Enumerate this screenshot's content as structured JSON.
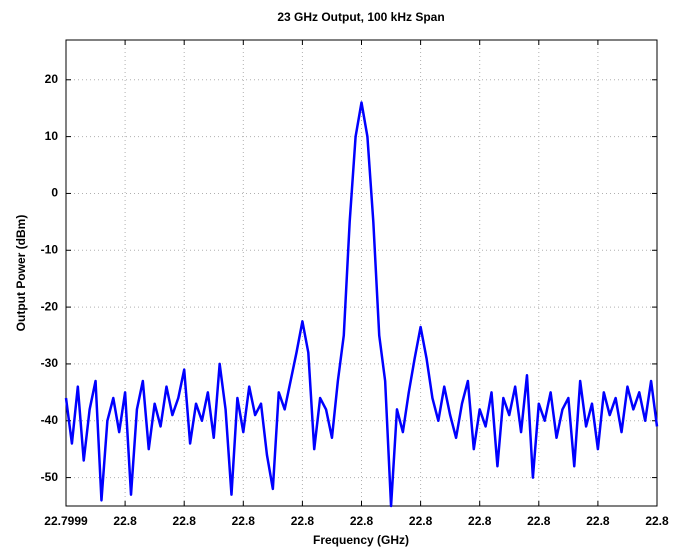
{
  "chart_data": {
    "type": "line",
    "title": "23 GHz Output, 100 kHz Span",
    "xlabel": "Frequency (GHz)",
    "ylabel": "Output Power (dBm)",
    "color": "#0000ff",
    "grid": true,
    "xlim": [
      22.79995,
      22.80005
    ],
    "ylim": [
      -55,
      27
    ],
    "xticks": [
      {
        "value": 22.79995,
        "label": "22.7999"
      },
      {
        "value": 22.79996,
        "label": "22.8"
      },
      {
        "value": 22.79997,
        "label": "22.8"
      },
      {
        "value": 22.79998,
        "label": "22.8"
      },
      {
        "value": 22.79999,
        "label": "22.8"
      },
      22.8,
      {
        "value": 22.80001,
        "label": "22.8"
      },
      {
        "value": 22.80002,
        "label": "22.8"
      },
      {
        "value": 22.80003,
        "label": "22.8"
      },
      {
        "value": 22.80004,
        "label": "22.8"
      },
      {
        "value": 22.80005,
        "label": "22.8"
      }
    ],
    "yticks": [
      -50,
      -40,
      -30,
      -20,
      -10,
      0,
      10,
      20
    ],
    "x": [
      22.79995,
      22.799951,
      22.799952,
      22.799953,
      22.799954,
      22.799955,
      22.799956,
      22.799957,
      22.799958,
      22.799959,
      22.79996,
      22.799961,
      22.799962,
      22.799963,
      22.799964,
      22.799965,
      22.799966,
      22.799967,
      22.799968,
      22.799969,
      22.79997,
      22.799971,
      22.799972,
      22.799973,
      22.799974,
      22.799975,
      22.799976,
      22.799977,
      22.799978,
      22.799979,
      22.79998,
      22.799981,
      22.799982,
      22.799983,
      22.799984,
      22.799985,
      22.799986,
      22.799987,
      22.799988,
      22.799989,
      22.79999,
      22.799991,
      22.799992,
      22.799993,
      22.799994,
      22.799995,
      22.799996,
      22.799997,
      22.799998,
      22.799999,
      22.8,
      22.800001,
      22.800002,
      22.800003,
      22.800004,
      22.800005,
      22.800006,
      22.800007,
      22.800008,
      22.800009,
      22.80001,
      22.800011,
      22.800012,
      22.800013,
      22.800014,
      22.800015,
      22.800016,
      22.800017,
      22.800018,
      22.800019,
      22.80002,
      22.800021,
      22.800022,
      22.800023,
      22.800024,
      22.800025,
      22.800026,
      22.800027,
      22.800028,
      22.800029,
      22.80003,
      22.800031,
      22.800032,
      22.800033,
      22.800034,
      22.800035,
      22.800036,
      22.800037,
      22.800038,
      22.800039,
      22.80004,
      22.800041,
      22.800042,
      22.800043,
      22.800044,
      22.800045,
      22.800046,
      22.800047,
      22.800048,
      22.800049,
      22.80005
    ],
    "values": [
      -36,
      -44,
      -34,
      -47,
      -38,
      -33,
      -54,
      -40,
      -36,
      -42,
      -35,
      -53,
      -38,
      -33,
      -45,
      -37,
      -41,
      -34,
      -39,
      -36,
      -31,
      -44,
      -37,
      -40,
      -35,
      -43,
      -30,
      -38,
      -53,
      -36,
      -42,
      -34,
      -39,
      -37,
      -46,
      -52,
      -35,
      -38,
      -33,
      -28,
      -22.5,
      -28,
      -45,
      -36,
      -38,
      -43,
      -33,
      -25,
      -5,
      10,
      16,
      10,
      -5,
      -25,
      -33,
      -55,
      -38,
      -42,
      -35,
      -29,
      -23.5,
      -29,
      -36,
      -40,
      -34,
      -39,
      -43,
      -37,
      -33,
      -45,
      -38,
      -41,
      -35,
      -48,
      -36,
      -39,
      -34,
      -42,
      -32,
      -50,
      -37,
      -40,
      -35,
      -43,
      -38,
      -36,
      -48,
      -33,
      -41,
      -37,
      -45,
      -35,
      -39,
      -36,
      -42,
      -34,
      -38,
      -35,
      -40,
      -33,
      -41
    ]
  }
}
